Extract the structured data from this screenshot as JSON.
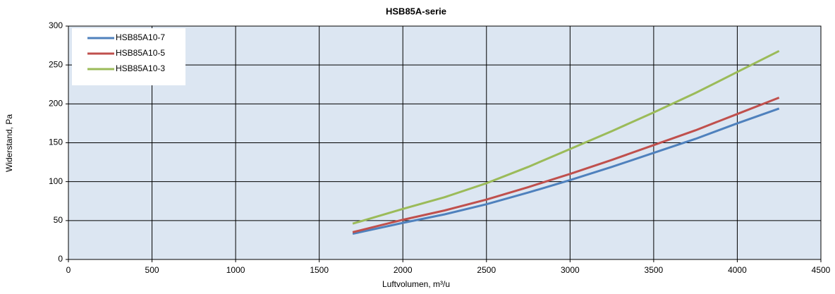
{
  "chart_data": {
    "type": "line",
    "title": "HSB85A-serie",
    "xlabel": "Luftvolumen, m³/u",
    "ylabel": "Widerstand, Pa",
    "x": [
      1700,
      2000,
      2250,
      2500,
      2750,
      3000,
      3250,
      3500,
      3750,
      4000,
      4250
    ],
    "series": [
      {
        "name": "HSB85A10-7",
        "color": "#4f81bd",
        "values": [
          33,
          47,
          58,
          71,
          86,
          102,
          119,
          137,
          155,
          175,
          194
        ]
      },
      {
        "name": "HSB85A10-5",
        "color": "#c0504d",
        "values": [
          35,
          51,
          63,
          77,
          93,
          110,
          128,
          147,
          166,
          187,
          208
        ]
      },
      {
        "name": "HSB85A10-3",
        "color": "#9bbb59",
        "values": [
          46,
          65,
          80,
          98,
          119,
          142,
          165,
          189,
          214,
          241,
          268
        ]
      }
    ],
    "xlim": [
      0,
      4500
    ],
    "xticks": [
      0,
      500,
      1000,
      1500,
      2000,
      2500,
      3000,
      3500,
      4000,
      4500
    ],
    "ylim": [
      0,
      300
    ],
    "yticks": [
      0,
      50,
      100,
      150,
      200,
      250,
      300
    ],
    "grid": true,
    "legend": "upper left"
  }
}
